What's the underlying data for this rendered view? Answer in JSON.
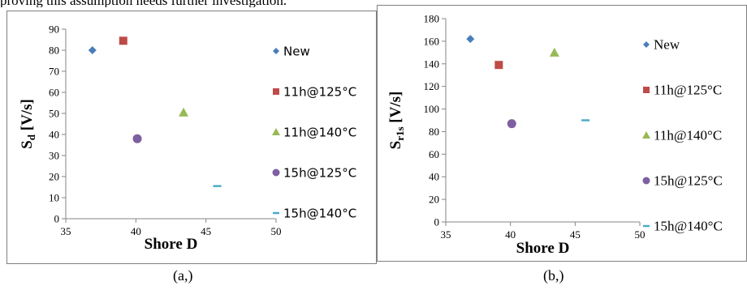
{
  "page": {
    "top_text": "proving this assumption needs further investigation."
  },
  "colors": {
    "New": "#4a7ebb",
    "11h@125°C": "#be4b48",
    "11h@140°C": "#98b954",
    "15h@125°C": "#7d60a0",
    "15h@140°C": "#46aac5",
    "axis": "#868686"
  },
  "chart_data": [
    {
      "type": "scatter",
      "panel_label": "(a,)",
      "xlabel": "Shore D",
      "ylabel_main": "S",
      "ylabel_sub": "d",
      "ylabel_unit": " [V/s]",
      "xlim": [
        35,
        50
      ],
      "ylim": [
        0,
        90
      ],
      "xticks": [
        "35",
        "40",
        "45",
        "50"
      ],
      "yticks": [
        "0",
        "10",
        "20",
        "30",
        "40",
        "50",
        "60",
        "70",
        "80",
        "90"
      ],
      "legend_position": "right",
      "series": [
        {
          "name": "New",
          "marker": "diamond",
          "points": [
            [
              36.9,
              80
            ]
          ]
        },
        {
          "name": "11h@125°C",
          "marker": "square",
          "points": [
            [
              39.1,
              84.5
            ]
          ]
        },
        {
          "name": "11h@140°C",
          "marker": "triangle",
          "points": [
            [
              43.4,
              50.5
            ]
          ]
        },
        {
          "name": "15h@125°C",
          "marker": "circle",
          "points": [
            [
              40.1,
              38
            ]
          ]
        },
        {
          "name": "15h@140°C",
          "marker": "dash",
          "points": [
            [
              45.8,
              15.5
            ]
          ]
        }
      ]
    },
    {
      "type": "scatter",
      "panel_label": "(b,)",
      "xlabel": "Shore D",
      "ylabel_main": "S",
      "ylabel_sub": "r1s",
      "ylabel_unit": " [V/s]",
      "xlim": [
        35,
        50
      ],
      "ylim": [
        0,
        180
      ],
      "xticks": [
        "35",
        "40",
        "45",
        "50"
      ],
      "yticks": [
        "0",
        "20",
        "40",
        "60",
        "80",
        "100",
        "120",
        "140",
        "160",
        "180"
      ],
      "legend_position": "right",
      "series": [
        {
          "name": "New",
          "marker": "diamond",
          "points": [
            [
              36.9,
              162
            ]
          ]
        },
        {
          "name": "11h@125°C",
          "marker": "square",
          "points": [
            [
              39.1,
              139
            ]
          ]
        },
        {
          "name": "11h@140°C",
          "marker": "triangle",
          "points": [
            [
              43.4,
              150
            ]
          ]
        },
        {
          "name": "15h@125°C",
          "marker": "circle",
          "points": [
            [
              40.1,
              87
            ]
          ]
        },
        {
          "name": "15h@140°C",
          "marker": "dash",
          "points": [
            [
              45.8,
              90
            ]
          ]
        }
      ]
    }
  ]
}
